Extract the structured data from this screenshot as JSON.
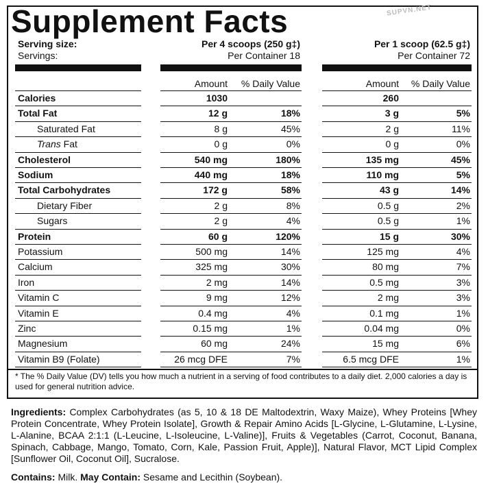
{
  "title": "Supplement Facts",
  "watermark": "SUPVN.NET",
  "header": {
    "serving_size_label": "Serving size:",
    "servings_label": "Servings:",
    "col1_serving": "Per 4 scoops (250 g‡)",
    "col1_servings": "Per Container 18",
    "col2_serving": "Per 1 scoop (62.5 g‡)",
    "col2_servings": "Per Container 72"
  },
  "column_headers": {
    "amount": "Amount",
    "dv": "% Daily Value"
  },
  "rows": [
    {
      "name": "Calories",
      "bold": true,
      "indent": false,
      "a1": "1030",
      "d1": "",
      "a2": "260",
      "d2": ""
    },
    {
      "name": "Total Fat",
      "bold": true,
      "indent": false,
      "a1": "12 g",
      "d1": "18%",
      "a2": "3 g",
      "d2": "5%"
    },
    {
      "name": "Saturated Fat",
      "bold": false,
      "indent": true,
      "a1": "8 g",
      "d1": "45%",
      "a2": "2 g",
      "d2": "11%"
    },
    {
      "name": "Trans Fat",
      "bold": false,
      "indent": true,
      "italic_part": "Trans",
      "rest": " Fat",
      "a1": "0 g",
      "d1": "0%",
      "a2": "0 g",
      "d2": "0%"
    },
    {
      "name": "Cholesterol",
      "bold": true,
      "indent": false,
      "a1": "540 mg",
      "d1": "180%",
      "a2": "135 mg",
      "d2": "45%"
    },
    {
      "name": "Sodium",
      "bold": true,
      "indent": false,
      "a1": "440 mg",
      "d1": "18%",
      "a2": "110 mg",
      "d2": "5%"
    },
    {
      "name": "Total Carbohydrates",
      "bold": true,
      "indent": false,
      "a1": "172 g",
      "d1": "58%",
      "a2": "43 g",
      "d2": "14%"
    },
    {
      "name": "Dietary Fiber",
      "bold": false,
      "indent": true,
      "a1": "2 g",
      "d1": "8%",
      "a2": "0.5 g",
      "d2": "2%"
    },
    {
      "name": "Sugars",
      "bold": false,
      "indent": true,
      "a1": "2 g",
      "d1": "4%",
      "a2": "0.5 g",
      "d2": "1%"
    },
    {
      "name": "Protein",
      "bold": true,
      "indent": false,
      "a1": "60 g",
      "d1": "120%",
      "a2": "15 g",
      "d2": "30%"
    },
    {
      "name": "Potassium",
      "bold": false,
      "indent": false,
      "a1": "500 mg",
      "d1": "14%",
      "a2": "125 mg",
      "d2": "4%"
    },
    {
      "name": "Calcium",
      "bold": false,
      "indent": false,
      "a1": "325 mg",
      "d1": "30%",
      "a2": "80 mg",
      "d2": "7%"
    },
    {
      "name": "Iron",
      "bold": false,
      "indent": false,
      "a1": "2 mg",
      "d1": "14%",
      "a2": "0.5 mg",
      "d2": "3%"
    },
    {
      "name": "Vitamin C",
      "bold": false,
      "indent": false,
      "a1": "9 mg",
      "d1": "12%",
      "a2": "2 mg",
      "d2": "3%"
    },
    {
      "name": "Vitamin E",
      "bold": false,
      "indent": false,
      "a1": "0.4 mg",
      "d1": "4%",
      "a2": "0.1 mg",
      "d2": "1%"
    },
    {
      "name": "Zinc",
      "bold": false,
      "indent": false,
      "a1": "0.15 mg",
      "d1": "1%",
      "a2": "0.04 mg",
      "d2": "0%"
    },
    {
      "name": "Magnesium",
      "bold": false,
      "indent": false,
      "a1": "60 mg",
      "d1": "24%",
      "a2": "15 mg",
      "d2": "6%"
    },
    {
      "name": "Vitamin B9 (Folate)",
      "bold": false,
      "indent": false,
      "a1": "26 mcg DFE",
      "d1": "7%",
      "a2": "6.5 mcg DFE",
      "d2": "1%"
    }
  ],
  "footnote": "* The % Daily Value (DV) tells you how much a nutrient in a serving of food contributes to a daily diet. 2,000 calories a day is used for general nutrition advice.",
  "ingredients": {
    "label": "Ingredients:",
    "text": " Complex Carbohydrates (as 5, 10 & 18 DE Maltodextrin, Waxy Maize), Whey Proteins [Whey Protein Concentrate, Whey Protein Isolate], Growth & Repair Amino Acids [L-Glycine, L-Glutamine, L-Lysine, L-Alanine, BCAA 2:1:1 (L-Leucine, L-Isoleucine, L-Valine)], Fruits & Vegetables (Carrot, Coconut, Banana, Spinach, Cabbage, Mango, Tomato, Corn, Kale, Passion Fruit, Apple)], Natural Flavor, MCT Lipid Complex [Sunflower Oil, Coconut Oil], Sucralose."
  },
  "contains": {
    "label": "Contains:",
    "text": " Milk. ",
    "may_label": "May Contain:",
    "may_text": " Sesame and Lecithin (Soybean)."
  }
}
